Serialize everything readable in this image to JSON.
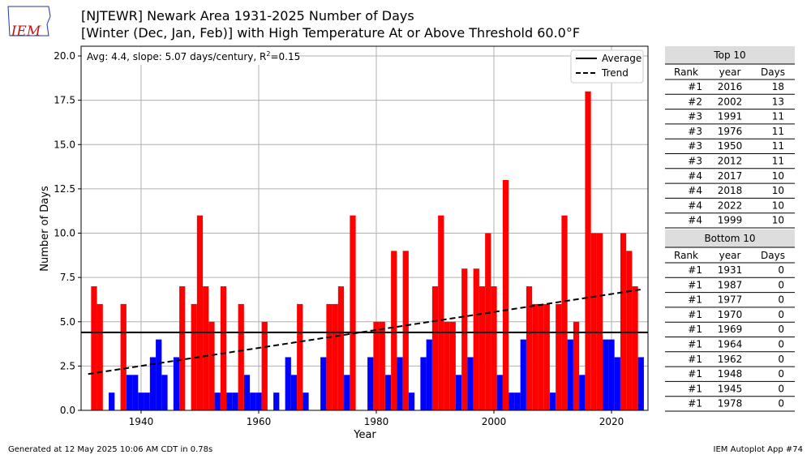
{
  "chart_data": {
    "type": "bar",
    "logo": "IEM",
    "title": "[NJTEWR] Newark Area 1931-2025 Number of Days",
    "subtitle": "[Winter (Dec, Jan, Feb)] with High Temperature At or Above Threshold 60.0°F",
    "annotation": {
      "before": "Avg: 4.4, slope: 5.07 days/century, R",
      "sup": "2",
      "after": "=0.15"
    },
    "x_label": "Year",
    "y_label": "Number of Days",
    "x": [
      1931,
      1932,
      1933,
      1934,
      1935,
      1936,
      1937,
      1938,
      1939,
      1940,
      1941,
      1942,
      1943,
      1944,
      1945,
      1946,
      1947,
      1948,
      1949,
      1950,
      1951,
      1952,
      1953,
      1954,
      1955,
      1956,
      1957,
      1958,
      1959,
      1960,
      1961,
      1962,
      1963,
      1964,
      1965,
      1966,
      1967,
      1968,
      1969,
      1970,
      1971,
      1972,
      1973,
      1974,
      1975,
      1976,
      1977,
      1978,
      1979,
      1980,
      1981,
      1982,
      1983,
      1984,
      1985,
      1986,
      1987,
      1988,
      1989,
      1990,
      1991,
      1992,
      1993,
      1994,
      1995,
      1996,
      1997,
      1998,
      1999,
      2000,
      2001,
      2002,
      2003,
      2004,
      2005,
      2006,
      2007,
      2008,
      2009,
      2010,
      2011,
      2012,
      2013,
      2014,
      2015,
      2016,
      2017,
      2018,
      2019,
      2020,
      2021,
      2022,
      2023,
      2024,
      2025
    ],
    "values": [
      0,
      7,
      6,
      0,
      1,
      0,
      6,
      2,
      2,
      1,
      1,
      3,
      4,
      2,
      0,
      3,
      7,
      0,
      6,
      11,
      7,
      5,
      1,
      7,
      1,
      1,
      6,
      2,
      1,
      1,
      5,
      0,
      1,
      0,
      3,
      2,
      6,
      1,
      0,
      0,
      3,
      6,
      6,
      7,
      2,
      11,
      0,
      0,
      3,
      5,
      5,
      2,
      9,
      3,
      9,
      1,
      0,
      3,
      4,
      7,
      11,
      5,
      5,
      2,
      8,
      3,
      8,
      7,
      10,
      7,
      2,
      13,
      1,
      1,
      4,
      7,
      6,
      6,
      6,
      1,
      6,
      11,
      4,
      5,
      2,
      18,
      10,
      10,
      4,
      4,
      3,
      10,
      9,
      7,
      3
    ],
    "above_color": "#ff0000",
    "below_color": "#0000ff",
    "average": 4.4,
    "average_name": "Average",
    "trend_name": "Trend",
    "trend": {
      "x": [
        1931,
        2025
      ],
      "values": [
        2.05,
        6.82
      ]
    },
    "xlim": [
      1929.8,
      2026.2
    ],
    "ylim": [
      0,
      20.55
    ],
    "xticks": [
      1940,
      1960,
      1980,
      2000,
      2020
    ],
    "yticks": [
      {
        "value": 0,
        "label": "0.0"
      },
      {
        "value": 2.5,
        "label": "2.5"
      },
      {
        "value": 5,
        "label": "5.0"
      },
      {
        "value": 7.5,
        "label": "7.5"
      },
      {
        "value": 10,
        "label": "10.0"
      },
      {
        "value": 12.5,
        "label": "12.5"
      },
      {
        "value": 15,
        "label": "15.0"
      },
      {
        "value": 17.5,
        "label": "17.5"
      },
      {
        "value": 20,
        "label": "20.0"
      }
    ],
    "grid": true,
    "legend_position": "upper right",
    "top_table": {
      "title": "Top 10",
      "columns": [
        "Rank",
        "year",
        "Days"
      ],
      "rows": [
        [
          "#1",
          "2016",
          "18"
        ],
        [
          "#2",
          "2002",
          "13"
        ],
        [
          "#3",
          "1991",
          "11"
        ],
        [
          "#3",
          "1976",
          "11"
        ],
        [
          "#3",
          "1950",
          "11"
        ],
        [
          "#3",
          "2012",
          "11"
        ],
        [
          "#4",
          "2017",
          "10"
        ],
        [
          "#4",
          "2018",
          "10"
        ],
        [
          "#4",
          "2022",
          "10"
        ],
        [
          "#4",
          "1999",
          "10"
        ]
      ]
    },
    "bottom_table": {
      "title": "Bottom 10",
      "columns": [
        "Rank",
        "year",
        "Days"
      ],
      "rows": [
        [
          "#1",
          "1931",
          "0"
        ],
        [
          "#1",
          "1987",
          "0"
        ],
        [
          "#1",
          "1977",
          "0"
        ],
        [
          "#1",
          "1970",
          "0"
        ],
        [
          "#1",
          "1969",
          "0"
        ],
        [
          "#1",
          "1964",
          "0"
        ],
        [
          "#1",
          "1962",
          "0"
        ],
        [
          "#1",
          "1948",
          "0"
        ],
        [
          "#1",
          "1945",
          "0"
        ],
        [
          "#1",
          "1978",
          "0"
        ]
      ]
    },
    "footer_left": "Generated at 12 May 2025 10:06 AM CDT in 0.78s",
    "footer_right": "IEM Autoplot App #74"
  }
}
